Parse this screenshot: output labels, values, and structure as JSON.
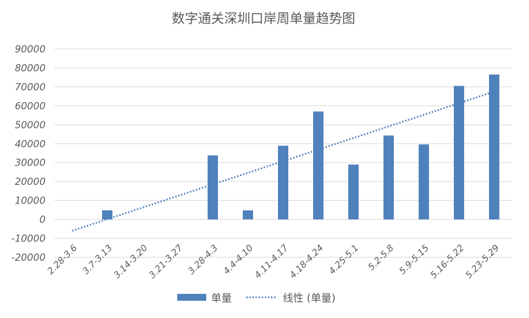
{
  "chart_data": {
    "type": "bar",
    "title": "数字通关深圳口岸周单量趋势图",
    "categories": [
      "2.28-3.6",
      "3.7-3.13",
      "3.14-3.20",
      "3.21-3.27",
      "3.28-4.3",
      "4.4-4.10",
      "4.11-4.17",
      "4.18-4.24",
      "4.25-5.1",
      "5.2-5.8",
      "5.9-5.15",
      "5.16-5.22",
      "5.23-5.29"
    ],
    "series": [
      {
        "name": "单量",
        "values": [
          0,
          4800,
          0,
          0,
          33800,
          4800,
          38900,
          57000,
          29000,
          44300,
          39600,
          70500,
          76500
        ]
      }
    ],
    "trendline": {
      "name": "线性 (单量)",
      "type": "linear",
      "start": -6000,
      "end": 67500
    },
    "yticks": [
      "90000",
      "80000",
      "70000",
      "60000",
      "50000",
      "40000",
      "30000",
      "20000",
      "10000",
      "0",
      "-10000",
      "-20000"
    ],
    "ylim": [
      -20000,
      90000
    ],
    "xlabel": "",
    "ylabel": "",
    "grid": true,
    "legend_position": "bottom",
    "colors": {
      "bar": "#4f81bd",
      "trend": "#4f81bd",
      "grid": "#d9d9d9",
      "text": "#595959"
    }
  }
}
